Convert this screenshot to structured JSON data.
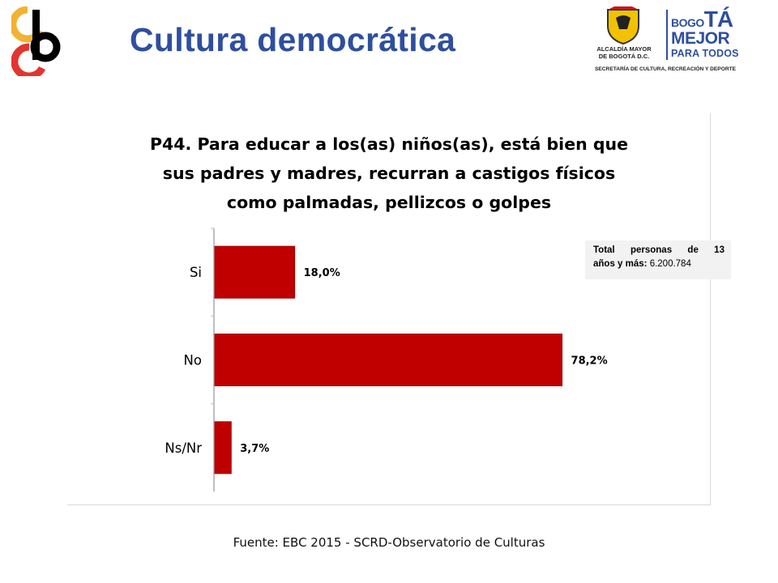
{
  "header": {
    "title": "Cultura democrática",
    "logo_alcaldia_line1": "ALCALDÍA MAYOR",
    "logo_alcaldia_line2": "DE BOGOTÁ D.C.",
    "logo_bogota_small": "BO",
    "logo_bogota_go": "GO",
    "logo_bogota_ta": "TÁ",
    "logo_mejor": "MEJOR",
    "logo_para_todos": "PARA TODOS",
    "logo_secretaria": "SECRETARÍA DE CULTURA, RECREACIÓN Y DEPORTE",
    "colors": {
      "title_blue": "#2e4f9f",
      "cb_yellow": "#f2b233",
      "cb_red": "#e3342f",
      "cb_black": "#000000"
    }
  },
  "chart_data": {
    "type": "bar",
    "orientation": "horizontal",
    "title_lines": [
      "P44. Para educar a los(as) niños(as), está bien que",
      "sus padres y madres, recurran a castigos físicos",
      "como palmadas, pellizcos o golpes"
    ],
    "categories": [
      "Si",
      "No",
      "Ns/Nr"
    ],
    "values": [
      18.0,
      78.2,
      3.7
    ],
    "value_labels": [
      "18,0%",
      "78,2%",
      "3,7%"
    ],
    "unit": "%",
    "xlim": [
      0,
      100
    ],
    "bar_color": "#c00000",
    "grid": false,
    "note": {
      "line1_words": [
        "Total",
        "personas",
        "de",
        "13"
      ],
      "line2_label": "años y más:",
      "line2_value": "6.200.784"
    }
  },
  "footer": {
    "source": "Fuente: EBC 2015 - SCRD-Observatorio de Culturas"
  }
}
